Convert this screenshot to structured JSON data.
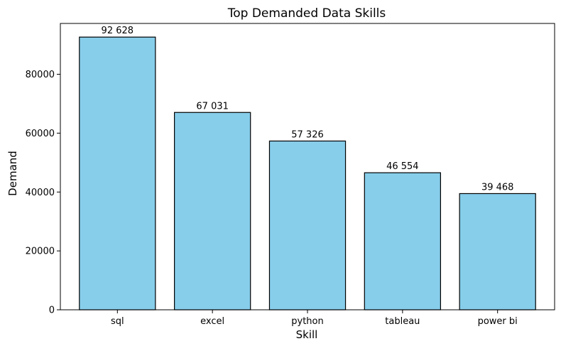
{
  "chart_data": {
    "type": "bar",
    "title": "Top Demanded Data Skills",
    "xlabel": "Skill",
    "ylabel": "Demand",
    "categories": [
      "sql",
      "excel",
      "python",
      "tableau",
      "power bi"
    ],
    "values": [
      92628,
      67031,
      57326,
      46554,
      39468
    ],
    "value_labels": [
      "92 628",
      "67 031",
      "57 326",
      "46 554",
      "39 468"
    ],
    "yticks": [
      0,
      20000,
      40000,
      60000,
      80000
    ],
    "ytick_labels": [
      "0",
      "20000",
      "40000",
      "60000",
      "80000"
    ],
    "ylim": [
      0,
      97259
    ],
    "grid": false,
    "legend": "none",
    "colors": {
      "bar_fill": "#87ceeb",
      "bar_edge": "#000000",
      "axis": "#000000"
    }
  }
}
